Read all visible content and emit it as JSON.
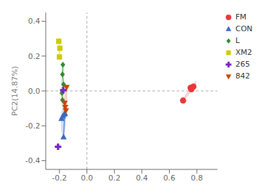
{
  "chart_data": {
    "type": "scatter",
    "y_label": "PC2(14.87%)",
    "xlim": [
      -0.3,
      0.95
    ],
    "ylim": [
      -0.45,
      0.45
    ],
    "xticks": [
      -0.2,
      {
        "value": 0.0,
        "label": "0.0"
      },
      0.2,
      0.4,
      0.6,
      0.8
    ],
    "yticks": [
      -0.4,
      -0.2,
      {
        "value": 0.0,
        "label": "0.0"
      },
      0.2,
      0.4
    ],
    "grid": false,
    "legend": "right",
    "reference_lines": {
      "x": [
        0
      ],
      "y": [
        0
      ]
    },
    "series": [
      {
        "name": "FM",
        "color": "#e8393a",
        "marker": "circle",
        "line_style": "none",
        "x": [
          0.7,
          0.755,
          0.775,
          0.76
        ],
        "values": [
          -0.055,
          0.018,
          0.025,
          0.01
        ],
        "ellipse": {
          "center_x": 0.7475,
          "center_y": -0.0005,
          "width": 0.14732,
          "height": 0.01384,
          "angle": 48.4,
          "color": "#f4a0a0"
        }
      },
      {
        "name": "CON",
        "color": "#3a6bbf",
        "marker": "triangle",
        "line_style": "solid",
        "x": [
          -0.175,
          -0.185,
          -0.165,
          -0.17,
          -0.16
        ],
        "values": [
          -0.145,
          -0.16,
          -0.135,
          -0.265,
          -0.13
        ],
        "ellipse": {
          "center_x": -0.171,
          "center_y": -0.167,
          "width": 0.16796,
          "height": 0.02853,
          "angle": 88.52,
          "color": "#a0b8e8"
        }
      },
      {
        "name": "L",
        "color": "#2e8b2e",
        "marker": "diamond",
        "line_style": "solid",
        "x": [
          -0.175,
          -0.178,
          -0.17,
          -0.182,
          -0.178
        ],
        "values": [
          0.15,
          0.095,
          0.038,
          -0.012,
          -0.052
        ],
        "ellipse": {
          "center_x": -0.1766,
          "center_y": 0.0438,
          "width": 0.24295,
          "height": 0.01254,
          "angle": 88.91,
          "color": "#90c090"
        }
      },
      {
        "name": "XM2",
        "color": "#cccc00",
        "marker": "square",
        "line_style": "dashed",
        "x": [
          -0.205,
          -0.197,
          -0.2
        ],
        "values": [
          0.285,
          0.245,
          0.195
        ],
        "ellipse": {
          "center_x": -0.200667,
          "center_y": 0.241667,
          "width": 0.13545,
          "height": 0.00997,
          "angle": 92.93,
          "color": "#eeee80"
        }
      },
      {
        "name": "265",
        "color": "#7b22cc",
        "marker": "plus",
        "line_style": "none",
        "x": [
          -0.172,
          -0.21
        ],
        "values": [
          0.004,
          -0.32
        ]
      },
      {
        "name": "842",
        "color": "#cc4400",
        "marker": "triangle-down",
        "line_style": "none",
        "x": [
          -0.162,
          -0.158,
          -0.148,
          -0.153
        ],
        "values": [
          -0.068,
          -0.092,
          0.022,
          -0.112
        ],
        "ellipse": {
          "center_x": -0.15525,
          "center_y": -0.0625,
          "width": 0.17772,
          "height": 0.01489,
          "angle": 86.6,
          "color": "#e0a080"
        }
      }
    ]
  }
}
